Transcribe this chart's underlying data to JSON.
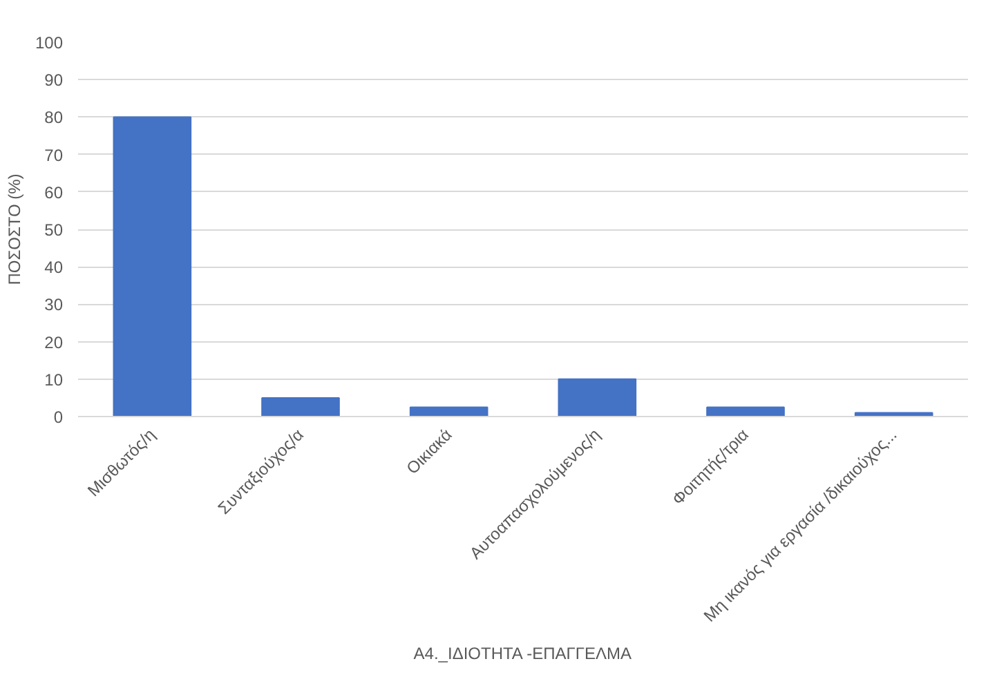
{
  "chart_data": {
    "type": "bar",
    "xlabel": "Α4._ΙΔΙΟΤΗΤΑ -ΕΠΑΓΓΕΛΜΑ",
    "ylabel": "ΠΟΣΟΣΤΟ (%)",
    "categories": [
      "Μισθωτός/η",
      "Συνταξιούχος/α",
      "Οικιακά",
      "Αυτοαπασχολούμενος/η",
      "Φοιτητής/τρια",
      "Μη ικανός για εργασία /δικαιούχος..."
    ],
    "values": [
      80,
      5,
      2.5,
      10,
      2.5,
      1
    ],
    "color": "#4472c4",
    "ylim": [
      0,
      100
    ],
    "yticks": [
      0,
      10,
      20,
      30,
      40,
      50,
      60,
      70,
      80,
      90,
      100
    ],
    "grid": "y"
  }
}
